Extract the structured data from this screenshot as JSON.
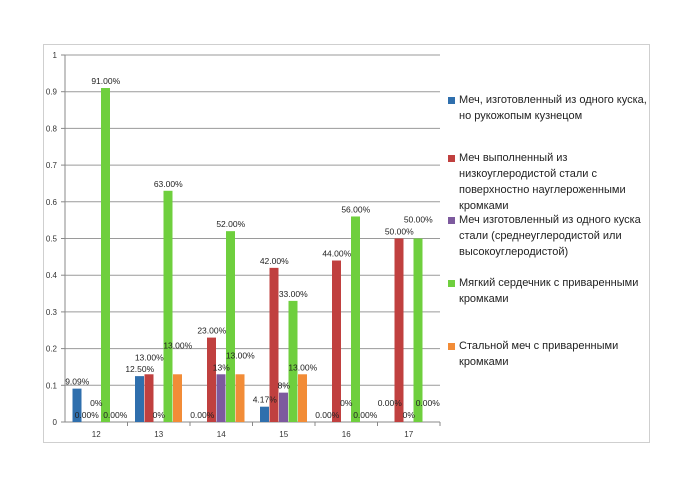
{
  "chart_data": {
    "type": "bar",
    "title": "",
    "xlabel": "",
    "ylabel": "",
    "ylim": [
      0,
      1
    ],
    "yticks": [
      "0",
      "0.1",
      "0.2",
      "0.3",
      "0.4",
      "0.5",
      "0.6",
      "0.7",
      "0.8",
      "0.9",
      "1"
    ],
    "grid": true,
    "legend_position": "right",
    "categories": [
      "12",
      "13",
      "14",
      "15",
      "16",
      "17"
    ],
    "series": [
      {
        "name": "Меч, изготовленный из одного куска, но рукожопым кузнецом",
        "color": "#2f6fad",
        "values": [
          0.0909,
          0.125,
          0,
          0.0417,
          0,
          0
        ],
        "labels": [
          "9.09%",
          "12.50%",
          "0.00%",
          "4.17%",
          "0.00%",
          "0.00%"
        ]
      },
      {
        "name": "Меч выполненный из низкоуглеродистой стали с поверхностно науглероженными кромками",
        "color": "#c0403f",
        "values": [
          0,
          0.13,
          0.23,
          0.42,
          0.44,
          0.5
        ],
        "labels": [
          "0.00%",
          "13.00%",
          "23.00%",
          "42.00%",
          "44.00%",
          "50.00%"
        ]
      },
      {
        "name": "Меч изготовленный из одного куска стали (среднеуглеродистой или высокоуглеродистой)",
        "color": "#7d5a9e",
        "values": [
          0,
          0,
          0.13,
          0.08,
          0,
          0
        ],
        "labels": [
          "0%",
          "0%",
          "13%",
          "8%",
          "0%",
          "0%"
        ]
      },
      {
        "name": "Мягкий сердечник с приваренными кромками",
        "color": "#6fcf3e",
        "values": [
          0.91,
          0.63,
          0.52,
          0.33,
          0.56,
          0.5
        ],
        "labels": [
          "91.00%",
          "63.00%",
          "52.00%",
          "33.00%",
          "56.00%",
          "50.00%"
        ]
      },
      {
        "name": "Стальной меч с приваренными кромками",
        "color": "#f28c37",
        "values": [
          0,
          0.13,
          0.13,
          0.13,
          0,
          0
        ],
        "labels": [
          "0.00%",
          "13.00%",
          "13.00%",
          "13.00%",
          "0.00%",
          "0.00%"
        ]
      }
    ]
  }
}
